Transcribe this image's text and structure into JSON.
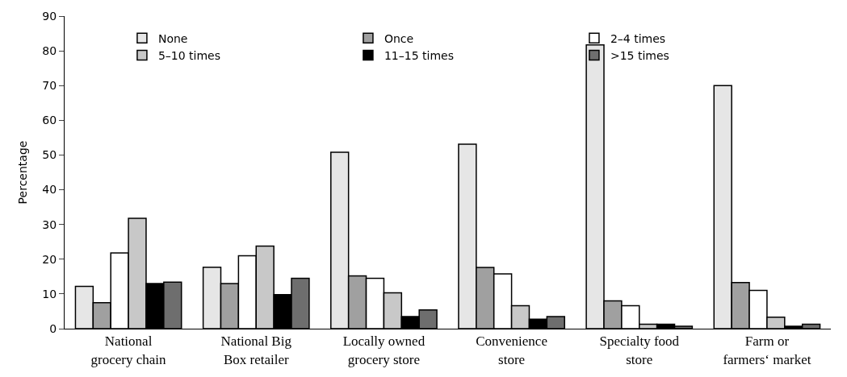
{
  "chart_data": {
    "type": "bar",
    "ylabel": "Percentage",
    "categories": [
      "National\ngrocery chain",
      "National Big\nBox retailer",
      "Locally owned\ngrocery store",
      "Convenience\nstore",
      "Specialty food\nstore",
      "Farm or\nfarmers‘ market"
    ],
    "series": [
      {
        "name": "None",
        "color": "#e6e6e6",
        "values": [
          12.2,
          17.7,
          50.8,
          53.1,
          81.7,
          70.0
        ]
      },
      {
        "name": "Once",
        "color": "#a0a0a0",
        "values": [
          7.5,
          13.0,
          15.2,
          17.6,
          8.0,
          13.3
        ]
      },
      {
        "name": "2–4 times",
        "color": "#ffffff",
        "values": [
          21.8,
          21.0,
          14.5,
          15.8,
          6.6,
          11.0
        ]
      },
      {
        "name": "5–10 times",
        "color": "#c8c8c8",
        "values": [
          31.8,
          23.8,
          10.3,
          6.6,
          1.3,
          3.3
        ]
      },
      {
        "name": "11–15 times",
        "color": "#000000",
        "values": [
          13.0,
          9.8,
          3.5,
          2.7,
          1.3,
          0.7
        ]
      },
      {
        "name": ">15 times",
        "color": "#6e6e6e",
        "values": [
          13.4,
          14.5,
          5.4,
          3.5,
          0.7,
          1.3
        ]
      }
    ],
    "ylim": [
      0,
      90
    ],
    "yticks": [
      0,
      10,
      20,
      30,
      40,
      50,
      60,
      70,
      80,
      90
    ],
    "legend": "top left"
  }
}
